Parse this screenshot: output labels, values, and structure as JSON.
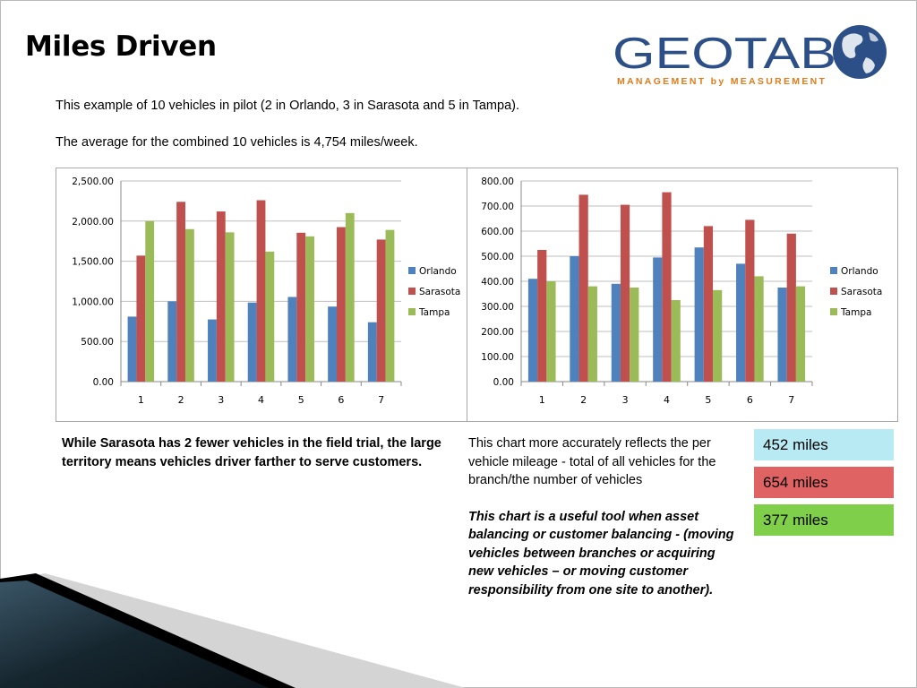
{
  "slide": {
    "title": "Miles Driven",
    "intro_line1": "This example of 10 vehicles in pilot (2 in Orlando, 3 in Sarasota and 5 in Tampa).",
    "intro_line2": "The average for the combined 10 vehicles is 4,754 miles/week.",
    "left_text": "While Sarasota has 2 fewer vehicles in the field trial, the large territory means vehicles driver farther to serve customers.",
    "right_text": "This chart more accurately reflects the per vehicle mileage  - total of all vehicles for the branch/the number of vehicles",
    "right_text_emphasis": "This chart is a useful tool when asset balancing or customer balancing - (moving vehicles between branches or acquiring new vehicles – or moving customer responsibility from one site to another).",
    "badges": [
      {
        "label": "452 miles",
        "color": "#b8eaf4"
      },
      {
        "label": "654 miles",
        "color": "#e06363"
      },
      {
        "label": "377 miles",
        "color": "#7fcf4b"
      }
    ]
  },
  "logo": {
    "wordmark": "GEOTAB",
    "tagline": "MANAGEMENT by MEASUREMENT",
    "wordmark_color": "#2b4f86",
    "tagline_color": "#e07b1a"
  },
  "colors": {
    "orlando": "#4f81bd",
    "sarasota": "#c0504d",
    "tampa": "#9bbb59"
  },
  "chart_data": [
    {
      "type": "bar",
      "categories": [
        "1",
        "2",
        "3",
        "4",
        "5",
        "6",
        "7"
      ],
      "series": [
        {
          "name": "Orlando",
          "values": [
            810,
            1000,
            775,
            985,
            1055,
            935,
            740
          ]
        },
        {
          "name": "Sarasota",
          "values": [
            1570,
            2240,
            2120,
            2260,
            1855,
            1925,
            1770
          ]
        },
        {
          "name": "Tampa",
          "values": [
            2000,
            1900,
            1860,
            1620,
            1810,
            2100,
            1890
          ]
        }
      ],
      "yticks": [
        "0.00",
        "500.00",
        "1,000.00",
        "1,500.00",
        "2,000.00",
        "2,500.00"
      ],
      "ylim": [
        0,
        2500
      ],
      "grid": true,
      "legend": "right"
    },
    {
      "type": "bar",
      "categories": [
        "1",
        "2",
        "3",
        "4",
        "5",
        "6",
        "7"
      ],
      "series": [
        {
          "name": "Orlando",
          "values": [
            410,
            500,
            390,
            495,
            535,
            470,
            375
          ]
        },
        {
          "name": "Sarasota",
          "values": [
            525,
            745,
            705,
            755,
            620,
            645,
            590
          ]
        },
        {
          "name": "Tampa",
          "values": [
            400,
            380,
            375,
            325,
            365,
            420,
            380
          ]
        }
      ],
      "yticks": [
        "0.00",
        "100.00",
        "200.00",
        "300.00",
        "400.00",
        "500.00",
        "600.00",
        "700.00",
        "800.00"
      ],
      "ylim": [
        0,
        800
      ],
      "grid": true,
      "legend": "right"
    }
  ]
}
